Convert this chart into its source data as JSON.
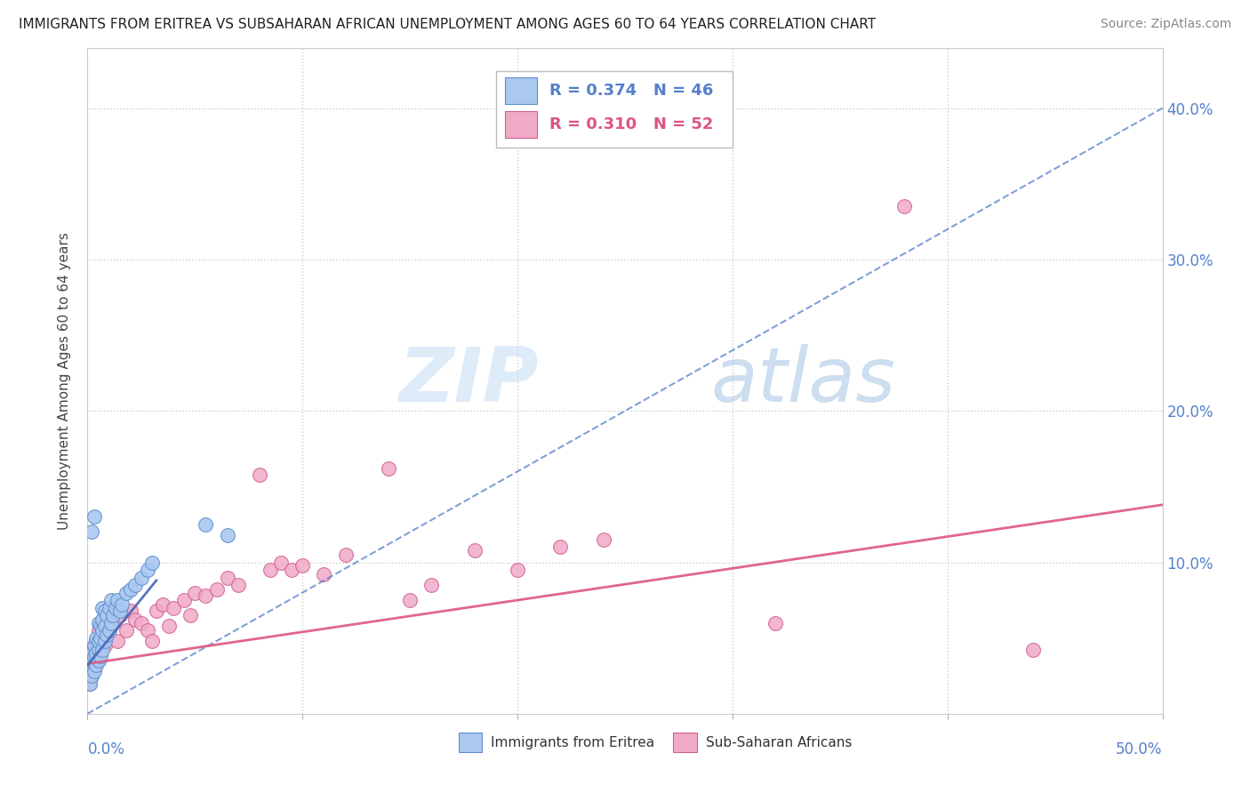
{
  "title": "IMMIGRANTS FROM ERITREA VS SUBSAHARAN AFRICAN UNEMPLOYMENT AMONG AGES 60 TO 64 YEARS CORRELATION CHART",
  "source": "Source: ZipAtlas.com",
  "ylabel": "Unemployment Among Ages 60 to 64 years",
  "series1_label": "Immigrants from Eritrea",
  "series2_label": "Sub-Saharan Africans",
  "series1_color": "#aac8f0",
  "series2_color": "#f0aac8",
  "series1_edge": "#6090cc",
  "series2_edge": "#d06090",
  "trend1_color": "#5580cc",
  "trend2_color": "#dd5580",
  "trend1_solid_color": "#4466bb",
  "watermark_zip": "ZIP",
  "watermark_atlas": "atlas",
  "background_color": "#ffffff",
  "xlim": [
    0.0,
    0.5
  ],
  "ylim": [
    0.0,
    0.44
  ],
  "yticks": [
    0.0,
    0.1,
    0.2,
    0.3,
    0.4
  ],
  "ytick_labels": [
    "",
    "10.0%",
    "20.0%",
    "30.0%",
    "40.0%"
  ],
  "xtick_left_label": "0.0%",
  "xtick_right_label": "50.0%",
  "legend_r1": "R = 0.374",
  "legend_n1": "N = 46",
  "legend_r2": "R = 0.310",
  "legend_n2": "N = 52",
  "series1_x": [
    0.001,
    0.001,
    0.002,
    0.002,
    0.002,
    0.003,
    0.003,
    0.003,
    0.004,
    0.004,
    0.004,
    0.005,
    0.005,
    0.005,
    0.005,
    0.006,
    0.006,
    0.006,
    0.007,
    0.007,
    0.007,
    0.007,
    0.008,
    0.008,
    0.008,
    0.009,
    0.009,
    0.01,
    0.01,
    0.011,
    0.011,
    0.012,
    0.013,
    0.014,
    0.015,
    0.016,
    0.018,
    0.02,
    0.022,
    0.025,
    0.028,
    0.03,
    0.055,
    0.065,
    0.002,
    0.003
  ],
  "series1_y": [
    0.02,
    0.03,
    0.025,
    0.035,
    0.04,
    0.028,
    0.038,
    0.045,
    0.032,
    0.04,
    0.05,
    0.035,
    0.042,
    0.048,
    0.06,
    0.038,
    0.05,
    0.058,
    0.042,
    0.055,
    0.062,
    0.07,
    0.048,
    0.058,
    0.068,
    0.052,
    0.065,
    0.055,
    0.07,
    0.06,
    0.075,
    0.065,
    0.07,
    0.075,
    0.068,
    0.072,
    0.08,
    0.082,
    0.085,
    0.09,
    0.095,
    0.1,
    0.125,
    0.118,
    0.12,
    0.13
  ],
  "series2_x": [
    0.001,
    0.001,
    0.002,
    0.002,
    0.003,
    0.003,
    0.004,
    0.004,
    0.005,
    0.005,
    0.006,
    0.007,
    0.008,
    0.009,
    0.01,
    0.012,
    0.014,
    0.015,
    0.018,
    0.02,
    0.022,
    0.025,
    0.028,
    0.03,
    0.032,
    0.035,
    0.038,
    0.04,
    0.045,
    0.048,
    0.05,
    0.055,
    0.06,
    0.065,
    0.07,
    0.08,
    0.085,
    0.09,
    0.095,
    0.1,
    0.11,
    0.12,
    0.14,
    0.15,
    0.16,
    0.18,
    0.2,
    0.22,
    0.24,
    0.32,
    0.38,
    0.44
  ],
  "series2_y": [
    0.02,
    0.035,
    0.025,
    0.04,
    0.03,
    0.045,
    0.035,
    0.048,
    0.038,
    0.055,
    0.042,
    0.05,
    0.045,
    0.052,
    0.058,
    0.06,
    0.048,
    0.065,
    0.055,
    0.068,
    0.062,
    0.06,
    0.055,
    0.048,
    0.068,
    0.072,
    0.058,
    0.07,
    0.075,
    0.065,
    0.08,
    0.078,
    0.082,
    0.09,
    0.085,
    0.158,
    0.095,
    0.1,
    0.095,
    0.098,
    0.092,
    0.105,
    0.162,
    0.075,
    0.085,
    0.108,
    0.095,
    0.11,
    0.115,
    0.06,
    0.335,
    0.042
  ],
  "trend1_x0": 0.0,
  "trend1_y0": 0.0,
  "trend1_x1": 0.5,
  "trend1_y1": 0.4,
  "trend2_x0": 0.0,
  "trend2_y0": 0.033,
  "trend2_x1": 0.5,
  "trend2_y1": 0.138,
  "trend1_solid_x0": 0.0,
  "trend1_solid_y0": 0.032,
  "trend1_solid_x1": 0.032,
  "trend1_solid_y1": 0.088
}
